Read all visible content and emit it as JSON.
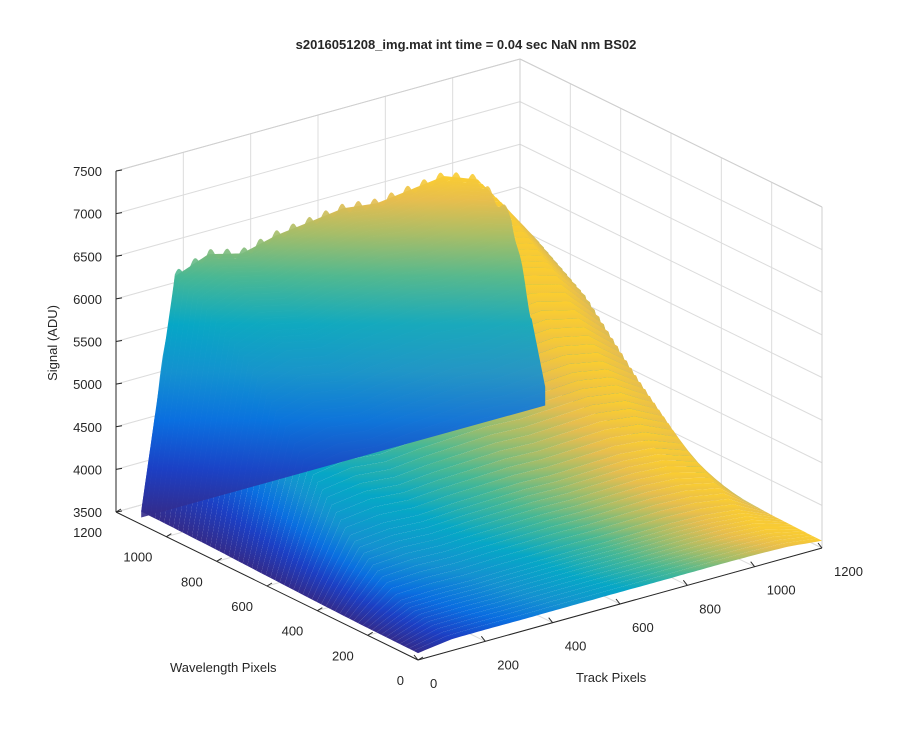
{
  "chart_data": {
    "type": "surface",
    "title": "s2016051208_img.mat int time = 0.04 sec  NaN nm BS02",
    "xlabel": "Track Pixels",
    "ylabel": "Wavelength Pixels",
    "zlabel": "Signal (ADU)",
    "xlim": [
      0,
      1200
    ],
    "ylim": [
      0,
      1200
    ],
    "zlim": [
      3500,
      7500
    ],
    "xticks": [
      "0",
      "200",
      "400",
      "600",
      "800",
      "1000",
      "1200"
    ],
    "yticks": [
      "0",
      "200",
      "400",
      "600",
      "800",
      "1000",
      "1200"
    ],
    "zticks": [
      "3500",
      "4000",
      "4500",
      "5000",
      "5500",
      "6000",
      "6500",
      "7000",
      "7500"
    ],
    "grid": true,
    "colormap": "parula",
    "colormap_stops": [
      "#352a87",
      "#0363e1",
      "#1485d4",
      "#06a7c6",
      "#38b99e",
      "#92bf73",
      "#d9ba56",
      "#fcce2e",
      "#f9fb0e"
    ],
    "surface_profile": {
      "track_pixels": [
        0,
        100,
        200,
        300,
        400,
        500,
        600,
        700,
        800,
        900,
        1000,
        1100,
        1200
      ],
      "signal_at_wavelength_1100": [
        3650,
        6300,
        6450,
        6350,
        6450,
        6500,
        6550,
        6500,
        6550,
        6600,
        6450,
        5900,
        3800
      ],
      "wavelength_pixels": [
        0,
        200,
        400,
        600,
        800,
        1000,
        1100,
        1200
      ],
      "relative_height": [
        0.02,
        0.08,
        0.25,
        0.5,
        0.78,
        0.95,
        1.0,
        0.0
      ]
    }
  }
}
